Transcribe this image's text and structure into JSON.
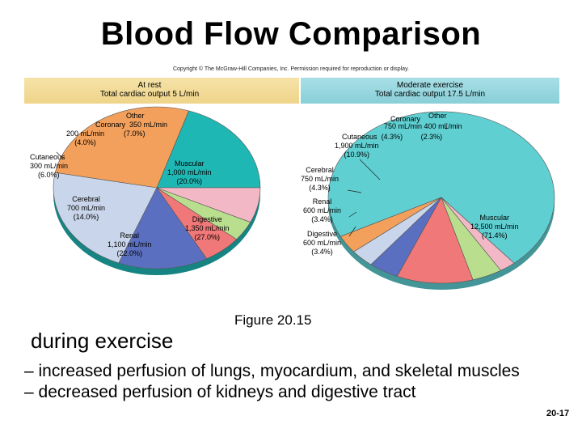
{
  "slide": {
    "title": "Blood Flow Comparison",
    "copyright": "Copyright © The McGraw-Hill Companies, Inc. Permission required for reproduction or display.",
    "figure_caption": "Figure 20.15",
    "subheading": "during exercise",
    "bullets": [
      "– increased perfusion of lungs, myocardium, and skeletal muscles",
      "– decreased  perfusion of kidneys and digestive tract"
    ],
    "page_number": "20-17"
  },
  "chart_data": [
    {
      "type": "pie",
      "header": [
        "At rest",
        "Total cardiac output 5 L/min"
      ],
      "slices": [
        {
          "name": "Muscular",
          "value": 20.0,
          "flow": "1,000 mL/min",
          "pct": "(20.0%)",
          "color": "#1fb7b4"
        },
        {
          "name": "Digestive",
          "value": 27.0,
          "flow": "1,350 mL/min",
          "pct": "(27.0%)",
          "color": "#f2a05c"
        },
        {
          "name": "Renal",
          "value": 22.0,
          "flow": "1,100 mL/min",
          "pct": "(22.0%)",
          "color": "#c9d5ea"
        },
        {
          "name": "Cerebral",
          "value": 14.0,
          "flow": "700 mL/min",
          "pct": "(14.0%)",
          "color": "#5b6fc0"
        },
        {
          "name": "Cutaneous",
          "value": 6.0,
          "flow": "300 mL/min",
          "pct": "(6.0%)",
          "color": "#f07878"
        },
        {
          "name": "Coronary",
          "value": 4.0,
          "flow": "200 mL/min",
          "pct": "(4.0%)",
          "color": "#b9de8e"
        },
        {
          "name": "Other",
          "value": 7.0,
          "flow": "350 mL/min",
          "pct": "(7.0%)",
          "color": "#f2b8c6"
        }
      ]
    },
    {
      "type": "pie",
      "header": [
        "Moderate exercise",
        "Total cardiac output 17.5 L/min"
      ],
      "slices": [
        {
          "name": "Muscular",
          "value": 71.4,
          "flow": "12,500 mL/min",
          "pct": "(71.4%)",
          "color": "#5fcfd2"
        },
        {
          "name": "Digestive",
          "value": 3.4,
          "flow": "600 mL/min",
          "pct": "(3.4%)",
          "color": "#f2a05c"
        },
        {
          "name": "Renal",
          "value": 3.4,
          "flow": "600 mL/min",
          "pct": "(3.4%)",
          "color": "#c9d5ea"
        },
        {
          "name": "Cerebral",
          "value": 4.3,
          "flow": "750 mL/min",
          "pct": "(4.3%)",
          "color": "#5b6fc0"
        },
        {
          "name": "Cutaneous",
          "value": 10.9,
          "flow": "1,900 mL/min",
          "pct": "(10.9%)",
          "color": "#f07878"
        },
        {
          "name": "Coronary",
          "value": 4.3,
          "flow": "750 mL/min",
          "pct": "(4.3%)",
          "color": "#b9de8e"
        },
        {
          "name": "Other",
          "value": 2.3,
          "flow": "400 mL/min",
          "pct": "(2.3%)",
          "color": "#f2b8c6"
        }
      ]
    }
  ]
}
